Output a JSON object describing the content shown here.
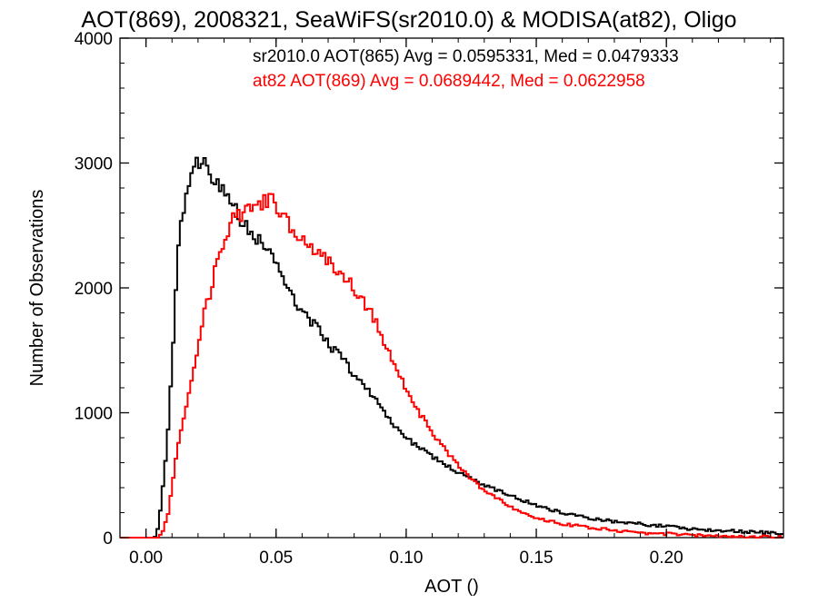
{
  "chart_data": {
    "type": "line",
    "title": "AOT(869), 2008321, SeaWiFS(sr2010.0) & MODISA(at82), Oligo",
    "xlabel": "AOT ()",
    "ylabel": "Number of Observations",
    "xlim": [
      -0.01,
      0.245
    ],
    "ylim": [
      0,
      4000
    ],
    "xticks": [
      {
        "value": 0.0,
        "label": "0.00"
      },
      {
        "value": 0.05,
        "label": "0.05"
      },
      {
        "value": 0.1,
        "label": "0.10"
      },
      {
        "value": 0.15,
        "label": "0.15"
      },
      {
        "value": 0.2,
        "label": "0.20"
      }
    ],
    "yticks": [
      {
        "value": 0,
        "label": "0"
      },
      {
        "value": 1000,
        "label": "1000"
      },
      {
        "value": 2000,
        "label": "2000"
      },
      {
        "value": 3000,
        "label": "3000"
      },
      {
        "value": 4000,
        "label": "4000"
      }
    ],
    "grid": false,
    "step": 0.001,
    "annotations": [
      {
        "text": "sr2010.0 AOT(865) Avg = 0.0595331, Med = 0.0479333",
        "color": "#000000"
      },
      {
        "text": "at82 AOT(869) Avg = 0.0689442, Med = 0.0622958",
        "color": "#ff0000"
      }
    ],
    "series": [
      {
        "color": "#000000",
        "x": [
          -0.01,
          0.0,
          0.003,
          0.004,
          0.005,
          0.006,
          0.007,
          0.008,
          0.009,
          0.01,
          0.011,
          0.012,
          0.013,
          0.014,
          0.015,
          0.016,
          0.018,
          0.02,
          0.021,
          0.022,
          0.023,
          0.024,
          0.025,
          0.027,
          0.03,
          0.035,
          0.04,
          0.045,
          0.05,
          0.055,
          0.06,
          0.065,
          0.07,
          0.075,
          0.08,
          0.085,
          0.09,
          0.095,
          0.1,
          0.11,
          0.12,
          0.13,
          0.14,
          0.15,
          0.16,
          0.17,
          0.18,
          0.19,
          0.2,
          0.21,
          0.22,
          0.23,
          0.24,
          0.245
        ],
        "y": [
          0,
          0,
          0,
          30,
          120,
          300,
          500,
          700,
          1000,
          1400,
          1800,
          2200,
          2450,
          2600,
          2700,
          2800,
          2900,
          3000,
          3050,
          3050,
          2950,
          3000,
          2900,
          2850,
          2750,
          2600,
          2450,
          2350,
          2200,
          2000,
          1800,
          1700,
          1550,
          1450,
          1300,
          1200,
          1050,
          900,
          800,
          650,
          520,
          420,
          340,
          260,
          200,
          160,
          130,
          110,
          90,
          70,
          60,
          50,
          40,
          30
        ]
      },
      {
        "color": "#ff0000",
        "x": [
          -0.01,
          0.0,
          0.005,
          0.006,
          0.007,
          0.008,
          0.009,
          0.01,
          0.012,
          0.015,
          0.018,
          0.02,
          0.022,
          0.025,
          0.028,
          0.03,
          0.032,
          0.035,
          0.038,
          0.04,
          0.042,
          0.045,
          0.048,
          0.05,
          0.055,
          0.06,
          0.065,
          0.07,
          0.075,
          0.08,
          0.085,
          0.09,
          0.095,
          0.1,
          0.105,
          0.11,
          0.115,
          0.12,
          0.125,
          0.13,
          0.14,
          0.15,
          0.16,
          0.17,
          0.18,
          0.19,
          0.2,
          0.21,
          0.22,
          0.23,
          0.24,
          0.245
        ],
        "y": [
          0,
          0,
          0,
          30,
          80,
          150,
          250,
          400,
          700,
          1000,
          1300,
          1550,
          1750,
          2000,
          2250,
          2400,
          2500,
          2600,
          2600,
          2620,
          2650,
          2700,
          2700,
          2650,
          2500,
          2400,
          2300,
          2200,
          2100,
          2000,
          1850,
          1650,
          1400,
          1200,
          1000,
          850,
          700,
          580,
          470,
          380,
          250,
          160,
          110,
          80,
          60,
          40,
          30,
          20,
          15,
          10,
          5,
          5
        ]
      }
    ]
  }
}
